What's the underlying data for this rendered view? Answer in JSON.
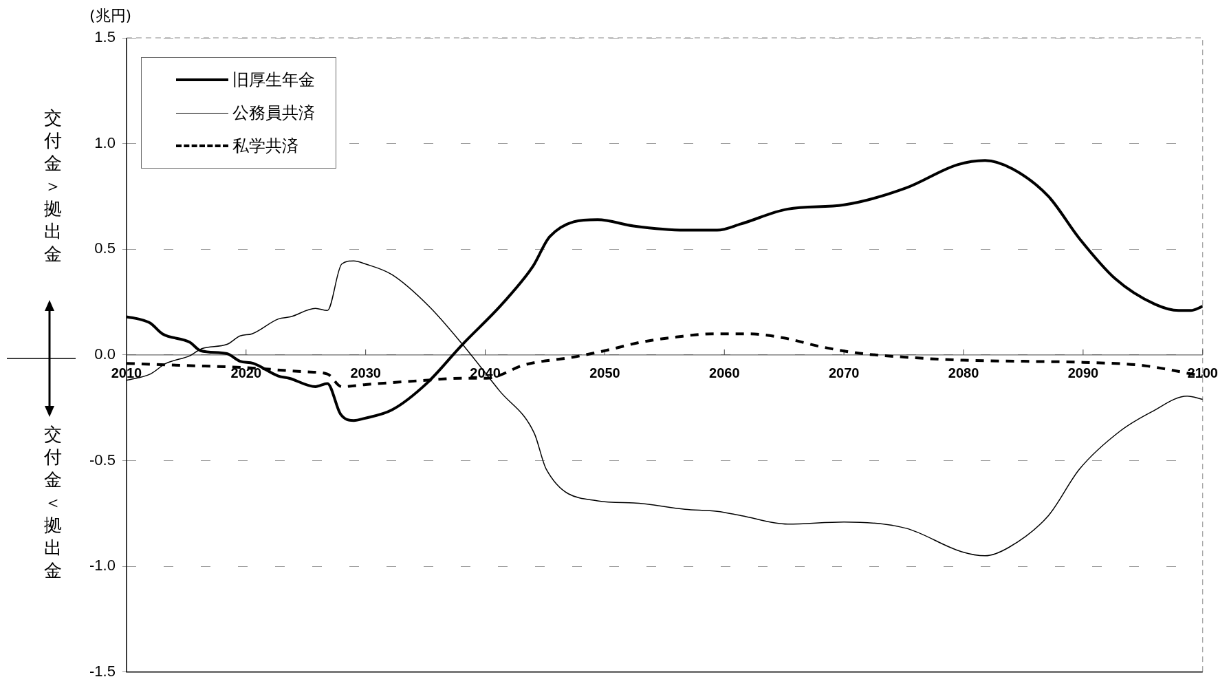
{
  "chart_data": {
    "type": "line",
    "ylabel": "(兆円)",
    "annotations": [
      "交付金＞拠出金",
      "交付金＜拠出金"
    ],
    "xlim": [
      2010,
      2100
    ],
    "xticks": [
      2010,
      2020,
      2030,
      2040,
      2050,
      2060,
      2070,
      2080,
      2090,
      2100
    ],
    "ylim": [
      -1.5,
      1.5
    ],
    "yticks": [
      {
        "value": -1.5,
        "label": "-1.5"
      },
      {
        "value": -1,
        "label": "-1.0"
      },
      {
        "value": -0.5,
        "label": "-0.5"
      },
      {
        "value": 0,
        "label": "0.0"
      },
      {
        "value": 0.5,
        "label": "0.5"
      },
      {
        "value": 1,
        "label": "1.0"
      },
      {
        "value": 1.5,
        "label": "1.5"
      }
    ],
    "grid": "y",
    "legend": "top left",
    "marker": "none",
    "series": [
      {
        "name": "旧厚生年金",
        "color": "#000000",
        "line_style": "solid",
        "x": [
          2010,
          2011,
          2012,
          2013,
          2015.3,
          2016.2,
          2018.4,
          2019.5,
          2020.6,
          2022.7,
          2023.6,
          2025.8,
          2026.8,
          2027.9,
          2029,
          2029.9,
          2032.2,
          2035.1,
          2038.1,
          2041.4,
          2044,
          2045.4,
          2049.4,
          2052.4,
          2056.7,
          2059.4,
          2061.4,
          2065.3,
          2070,
          2075.2,
          2079.5,
          2081.8,
          2084.1,
          2087.1,
          2089.7,
          2092.7,
          2096,
          2098,
          2099,
          2100
        ],
        "values": [
          0.18,
          0.17,
          0.15,
          0.1,
          0.06,
          0.02,
          0.006,
          -0.03,
          -0.04,
          -0.1,
          -0.11,
          -0.15,
          -0.135,
          -0.28,
          -0.31,
          -0.3,
          -0.26,
          -0.135,
          0.05,
          0.24,
          0.42,
          0.56,
          0.64,
          0.61,
          0.59,
          0.59,
          0.62,
          0.69,
          0.71,
          0.79,
          0.9,
          0.92,
          0.88,
          0.75,
          0.55,
          0.36,
          0.24,
          0.21,
          0.21,
          0.23
        ]
      },
      {
        "name": "公務員共済",
        "color": "#000000",
        "line_style": "solid",
        "x": [
          2010,
          2012,
          2013.3,
          2015.3,
          2016.3,
          2018.4,
          2019.5,
          2020.5,
          2022.7,
          2023.7,
          2025.8,
          2026.8,
          2028,
          2029,
          2030,
          2032.2,
          2035.3,
          2038.1,
          2041.2,
          2044.1,
          2045.1,
          2049.4,
          2052.4,
          2056.7,
          2059.4,
          2061.4,
          2065.3,
          2070,
          2075.2,
          2079.8,
          2081.8,
          2083.8,
          2087.1,
          2089.7,
          2093.1,
          2095.7,
          2098.7,
          2100
        ],
        "values": [
          -0.12,
          -0.09,
          -0.04,
          -0.004,
          0.03,
          0.05,
          0.09,
          0.1,
          0.17,
          0.18,
          0.22,
          0.21,
          0.43,
          0.445,
          0.43,
          0.38,
          0.23,
          0.05,
          -0.17,
          -0.37,
          -0.54,
          -0.69,
          -0.7,
          -0.73,
          -0.74,
          -0.76,
          -0.8,
          -0.79,
          -0.82,
          -0.93,
          -0.95,
          -0.91,
          -0.76,
          -0.54,
          -0.36,
          -0.27,
          -0.195,
          -0.21
        ]
      },
      {
        "name": "私学共済",
        "color": "#000000",
        "line_style": "dashed",
        "x": [
          2010,
          2015,
          2020,
          2025,
          2026.8,
          2028,
          2030,
          2035,
          2038,
          2040.1,
          2043.4,
          2047.4,
          2050,
          2053,
          2056,
          2059,
          2062,
          2065,
          2068,
          2071,
          2075,
          2080,
          2085,
          2090,
          2095,
          2100
        ],
        "values": [
          -0.04,
          -0.05,
          -0.06,
          -0.08,
          -0.09,
          -0.15,
          -0.14,
          -0.12,
          -0.11,
          -0.11,
          -0.045,
          -0.01,
          0.02,
          0.06,
          0.085,
          0.1,
          0.1,
          0.08,
          0.04,
          0.01,
          -0.01,
          -0.025,
          -0.03,
          -0.035,
          -0.05,
          -0.1
        ]
      }
    ]
  }
}
